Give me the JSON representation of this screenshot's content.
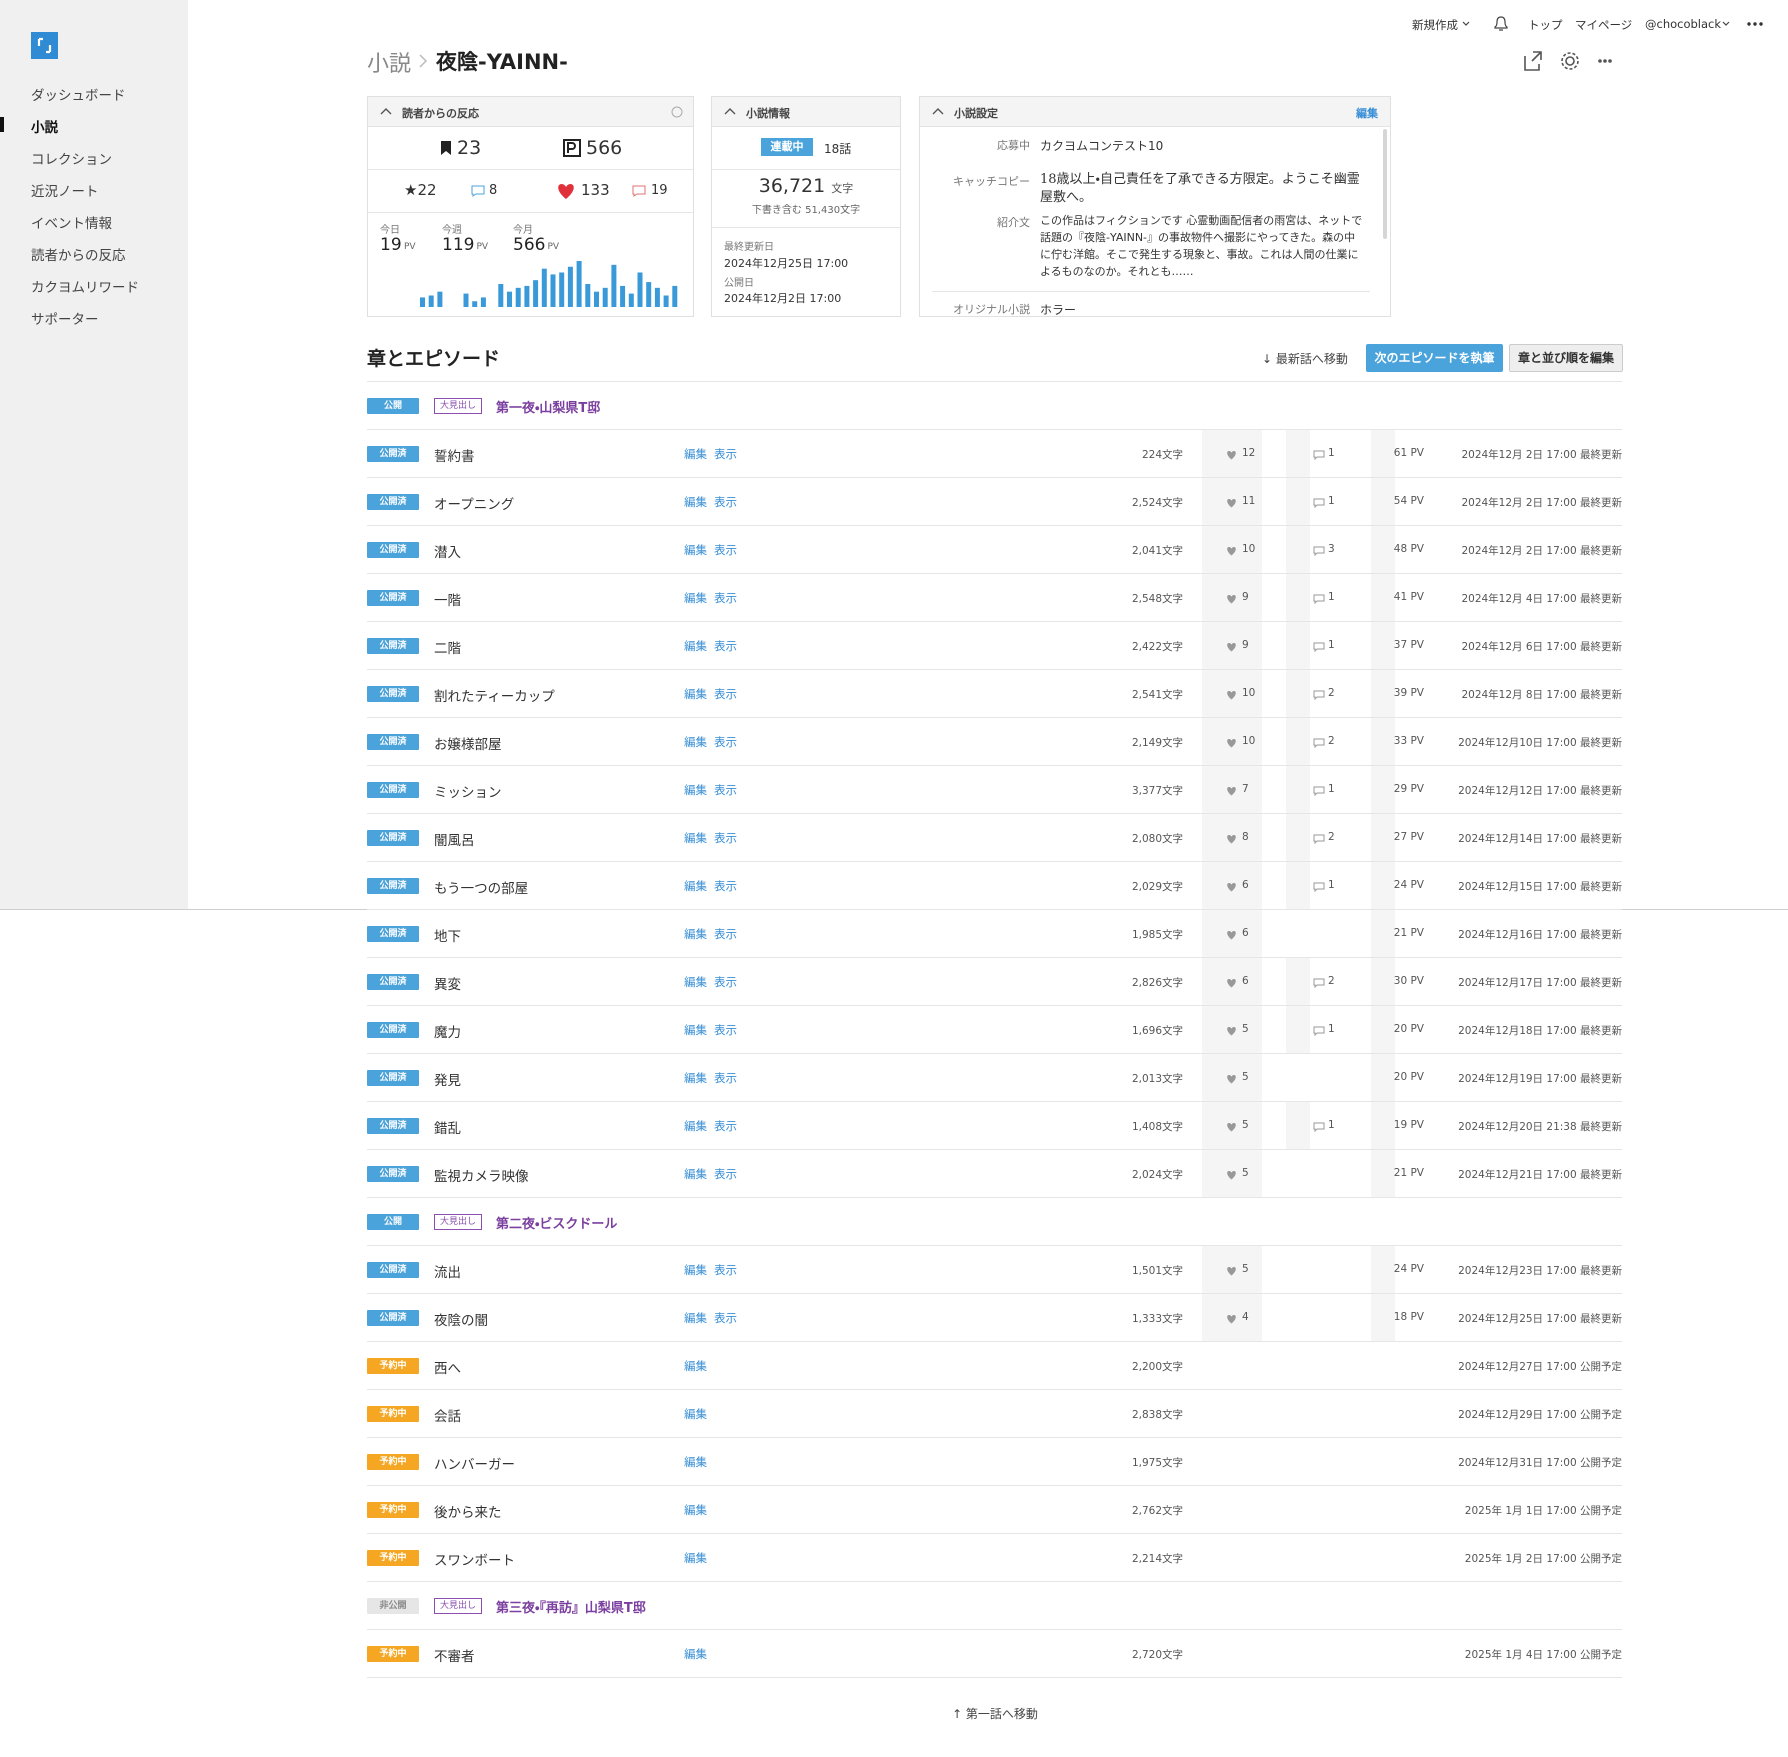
{
  "sidebar": {
    "items": [
      "ダッシュボード",
      "小説",
      "コレクション",
      "近況ノート",
      "イベント情報",
      "読者からの反応",
      "カクヨムリワード",
      "サポーター"
    ],
    "active": 1
  },
  "header": {
    "nav": [
      "新規作成",
      "トップ",
      "マイページ",
      "@chocoblack"
    ]
  },
  "breadcrumb": {
    "parent": "小説",
    "title": "夜陰-YAINN-"
  },
  "reactions": {
    "title": "読者からの反応",
    "bookmarks": "23",
    "pv_total": "566",
    "stars": "★22",
    "reviews": "8",
    "hearts": "133",
    "comments": "19",
    "periods": [
      {
        "label": "今日",
        "value": "19",
        "unit": "PV"
      },
      {
        "label": "今週",
        "value": "119",
        "unit": "PV"
      },
      {
        "label": "今月",
        "value": "566",
        "unit": "PV"
      }
    ],
    "daily_pv": [
      5,
      6,
      8,
      0,
      0,
      7,
      3,
      5,
      0,
      12,
      8,
      10,
      11,
      14,
      20,
      17,
      18,
      21,
      24,
      12,
      8,
      10,
      22,
      11,
      7,
      18,
      13,
      10,
      6,
      11
    ]
  },
  "info": {
    "title": "小説情報",
    "status": "連載中",
    "episodes": "18話",
    "chars": "36,721",
    "chars_unit": "文字",
    "draft": "下書き含む 51,430文字",
    "updated_label": "最終更新日",
    "updated": "2024年12月25日 17:00",
    "published_label": "公開日",
    "published": "2024年12月2日 17:00"
  },
  "settings": {
    "title": "小説設定",
    "edit": "編集",
    "contest_label": "応募中",
    "contest": "カクヨムコンテスト10",
    "catch_label": "キャッチコピー",
    "catch": "18歳以上・自己責任を了承できる方限定。ようこそ幽霊屋敷へ。",
    "intro_label": "紹介文",
    "intro": "この作品はフィクションです 心霊動画配信者の雨宮は、ネットで話題の『夜陰-YAINN-』の事故物件へ撮影にやってきた。森の中に佇む洋館。そこで発生する現象と、事故。これは人間の仕業によるものなのか。それとも……",
    "genre_label": "オリジナル小説",
    "genre": "ホラー"
  },
  "episodes": {
    "title": "章とエピソード",
    "jump_latest": "↓ 最新話へ移動",
    "write_next": "次のエピソードを執筆",
    "edit_order": "章と並び順を編集",
    "jump_first": "↑ 第一話へ移動",
    "rows": [
      {
        "status": "公開",
        "status_color": "#4ba3dc",
        "tag": "大見出し",
        "title": "第一夜・山梨県T邸"
      },
      {
        "status": "公開済",
        "status_color": "#4ba3dc",
        "title": "誓約書",
        "links": [
          "編集",
          "表示"
        ],
        "chars": "224文字",
        "hearts": 12,
        "comments": 1,
        "pv": "61 PV",
        "date": "2024年12月 2日 17:00 最終更新"
      },
      {
        "status": "公開済",
        "status_color": "#4ba3dc",
        "title": "オープニング",
        "links": [
          "編集",
          "表示"
        ],
        "chars": "2,524文字",
        "hearts": 11,
        "comments": 1,
        "pv": "54 PV",
        "date": "2024年12月 2日 17:00 最終更新"
      },
      {
        "status": "公開済",
        "status_color": "#4ba3dc",
        "title": "潜入",
        "links": [
          "編集",
          "表示"
        ],
        "chars": "2,041文字",
        "hearts": 10,
        "comments": 3,
        "pv": "48 PV",
        "date": "2024年12月 2日 17:00 最終更新"
      },
      {
        "status": "公開済",
        "status_color": "#4ba3dc",
        "title": "一階",
        "links": [
          "編集",
          "表示"
        ],
        "chars": "2,548文字",
        "hearts": 9,
        "comments": 1,
        "pv": "41 PV",
        "date": "2024年12月 4日 17:00 最終更新"
      },
      {
        "status": "公開済",
        "status_color": "#4ba3dc",
        "title": "二階",
        "links": [
          "編集",
          "表示"
        ],
        "chars": "2,422文字",
        "hearts": 9,
        "comments": 1,
        "pv": "37 PV",
        "date": "2024年12月 6日 17:00 最終更新"
      },
      {
        "status": "公開済",
        "status_color": "#4ba3dc",
        "title": "割れたティーカップ",
        "links": [
          "編集",
          "表示"
        ],
        "chars": "2,541文字",
        "hearts": 10,
        "comments": 2,
        "pv": "39 PV",
        "date": "2024年12月 8日 17:00 最終更新"
      },
      {
        "status": "公開済",
        "status_color": "#4ba3dc",
        "title": "お嬢様部屋",
        "links": [
          "編集",
          "表示"
        ],
        "chars": "2,149文字",
        "hearts": 10,
        "comments": 2,
        "pv": "33 PV",
        "date": "2024年12月10日 17:00 最終更新"
      },
      {
        "status": "公開済",
        "status_color": "#4ba3dc",
        "title": "ミッション",
        "links": [
          "編集",
          "表示"
        ],
        "chars": "3,377文字",
        "hearts": 7,
        "comments": 1,
        "pv": "29 PV",
        "date": "2024年12月12日 17:00 最終更新"
      },
      {
        "status": "公開済",
        "status_color": "#4ba3dc",
        "title": "闇風呂",
        "links": [
          "編集",
          "表示"
        ],
        "chars": "2,080文字",
        "hearts": 8,
        "comments": 2,
        "pv": "27 PV",
        "date": "2024年12月14日 17:00 最終更新"
      },
      {
        "status": "公開済",
        "status_color": "#4ba3dc",
        "title": "もう一つの部屋",
        "links": [
          "編集",
          "表示"
        ],
        "chars": "2,029文字",
        "hearts": 6,
        "comments": 1,
        "pv": "24 PV",
        "date": "2024年12月15日 17:00 最終更新"
      },
      {
        "status": "公開済",
        "status_color": "#4ba3dc",
        "title": "地下",
        "links": [
          "編集",
          "表示"
        ],
        "chars": "1,985文字",
        "hearts": 6,
        "pv": "21 PV",
        "date": "2024年12月16日 17:00 最終更新"
      },
      {
        "status": "公開済",
        "status_color": "#4ba3dc",
        "title": "異変",
        "links": [
          "編集",
          "表示"
        ],
        "chars": "2,826文字",
        "hearts": 6,
        "comments": 2,
        "pv": "30 PV",
        "date": "2024年12月17日 17:00 最終更新"
      },
      {
        "status": "公開済",
        "status_color": "#4ba3dc",
        "title": "魔力",
        "links": [
          "編集",
          "表示"
        ],
        "chars": "1,696文字",
        "hearts": 5,
        "comments": 1,
        "pv": "20 PV",
        "date": "2024年12月18日 17:00 最終更新"
      },
      {
        "status": "公開済",
        "status_color": "#4ba3dc",
        "title": "発見",
        "links": [
          "編集",
          "表示"
        ],
        "chars": "2,013文字",
        "hearts": 5,
        "pv": "20 PV",
        "date": "2024年12月19日 17:00 最終更新"
      },
      {
        "status": "公開済",
        "status_color": "#4ba3dc",
        "title": "錯乱",
        "links": [
          "編集",
          "表示"
        ],
        "chars": "1,408文字",
        "hearts": 5,
        "comments": 1,
        "pv": "19 PV",
        "date": "2024年12月20日 21:38 最終更新"
      },
      {
        "status": "公開済",
        "status_color": "#4ba3dc",
        "title": "監視カメラ映像",
        "links": [
          "編集",
          "表示"
        ],
        "chars": "2,024文字",
        "hearts": 5,
        "pv": "21 PV",
        "date": "2024年12月21日 17:00 最終更新"
      },
      {
        "status": "公開",
        "status_color": "#4ba3dc",
        "tag": "大見出し",
        "title": "第二夜・ビスクドール"
      },
      {
        "status": "公開済",
        "status_color": "#4ba3dc",
        "title": "流出",
        "links": [
          "編集",
          "表示"
        ],
        "chars": "1,501文字",
        "hearts": 5,
        "pv": "24 PV",
        "date": "2024年12月23日 17:00 最終更新"
      },
      {
        "status": "公開済",
        "status_color": "#4ba3dc",
        "title": "夜陰の闇",
        "links": [
          "編集",
          "表示"
        ],
        "chars": "1,333文字",
        "hearts": 4,
        "pv": "18 PV",
        "date": "2024年12月25日 17:00 最終更新"
      },
      {
        "status": "予約中",
        "status_color": "#f5a623",
        "title": "西へ",
        "links": [
          "編集"
        ],
        "chars": "2,200文字",
        "date": "2024年12月27日 17:00 公開予定"
      },
      {
        "status": "予約中",
        "status_color": "#f5a623",
        "title": "会話",
        "links": [
          "編集"
        ],
        "chars": "2,838文字",
        "date": "2024年12月29日 17:00 公開予定"
      },
      {
        "status": "予約中",
        "status_color": "#f5a623",
        "title": "ハンバーガー",
        "links": [
          "編集"
        ],
        "chars": "1,975文字",
        "date": "2024年12月31日 17:00 公開予定"
      },
      {
        "status": "予約中",
        "status_color": "#f5a623",
        "title": "後から来た",
        "links": [
          "編集"
        ],
        "chars": "2,762文字",
        "date": "2025年 1月 1日 17:00 公開予定"
      },
      {
        "status": "予約中",
        "status_color": "#f5a623",
        "title": "スワンボート",
        "links": [
          "編集"
        ],
        "chars": "2,214文字",
        "date": "2025年 1月 2日 17:00 公開予定"
      },
      {
        "status": "非公開",
        "status_color": "#e6e6e6",
        "status_text_color": "#888888",
        "tag": "大見出し",
        "title": "第三夜・『再訪』山梨県T邸"
      },
      {
        "status": "予約中",
        "status_color": "#f5a623",
        "title": "不審者",
        "links": [
          "編集"
        ],
        "chars": "2,720文字",
        "date": "2025年 1月 4日 17:00 公開予定"
      }
    ]
  }
}
